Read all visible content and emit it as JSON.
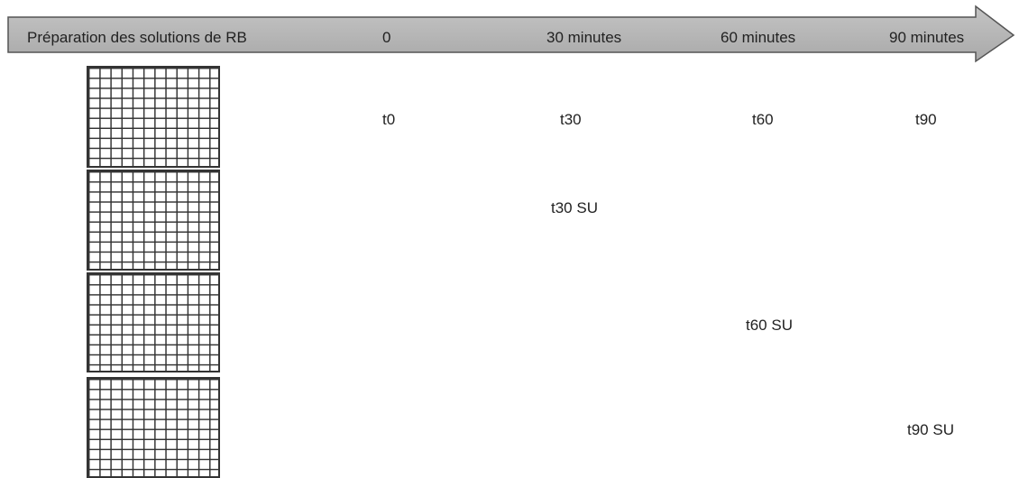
{
  "timeline": {
    "prep_label": "Préparation des solutions de RB",
    "ticks": [
      "0",
      "30 minutes",
      "60 minutes",
      "90 minutes"
    ]
  },
  "samples": {
    "row1": [
      "t0",
      "t30",
      "t60",
      "t90"
    ],
    "t30su": "t30 SU",
    "t60su": "t60 SU",
    "t90su": "t90 SU"
  }
}
